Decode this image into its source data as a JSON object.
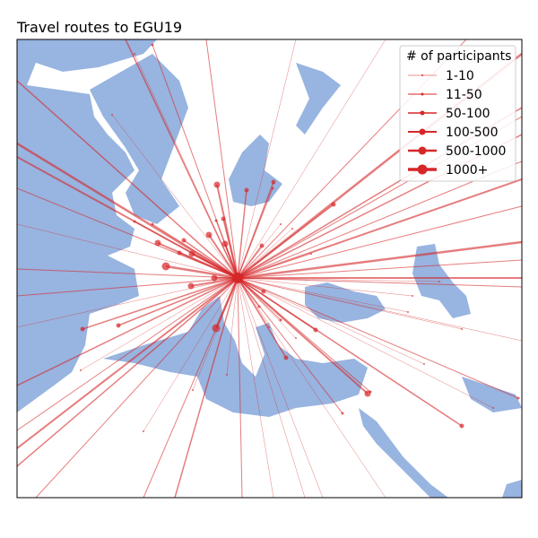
{
  "title": "Travel routes to EGU19",
  "legend": {
    "title": "# of participants",
    "entries": [
      "1-10",
      "11-50",
      "50-100",
      "100-500",
      "500-1000",
      "1000+"
    ]
  }
}
